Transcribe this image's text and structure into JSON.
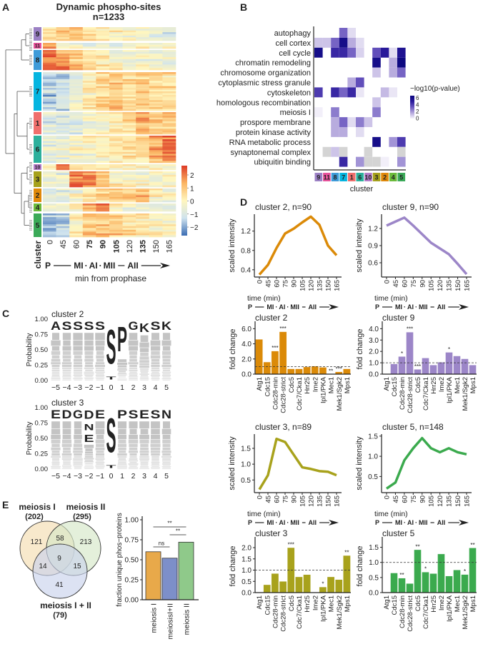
{
  "panel_letters": [
    "A",
    "B",
    "C",
    "D",
    "E"
  ],
  "stage_colors": {
    "P": "#222222",
    "MI": "#F26C6C",
    "AI": "#6CBB3C",
    "MII": "#22B8C8",
    "AII": "#A08BD0"
  },
  "time_points": [
    "0",
    "45",
    "60",
    "75",
    "90",
    "105",
    "120",
    "135",
    "150",
    "165"
  ],
  "time_colors": [
    "#222222",
    "#222222",
    "#222222",
    "#F26C6C",
    "#6CBB3C",
    "#22B8C8",
    "#222222",
    "#A08BD0",
    "#222222",
    "#222222"
  ],
  "stage_arrow": {
    "start": "P",
    "stages": [
      "MI",
      "AI",
      "MII",
      "AII"
    ],
    "separator": "·"
  },
  "cluster_colors": {
    "9": "#9B80C4",
    "11": "#E8529C",
    "8": "#3E9BD9",
    "7": "#05B5E0",
    "1": "#EF6F6C",
    "6": "#2CB09C",
    "10": "#B47CC8",
    "3": "#A6A11C",
    "2": "#E0890A",
    "4": "#6CBB3C",
    "5": "#3BAA58"
  },
  "chart_data": [
    {
      "panel": "A",
      "type": "heatmap",
      "title": "Dynamic phospho-sites",
      "subtitle": "n=1233",
      "row_label": "cluster",
      "xlabel": "min from prophase",
      "colorbar": {
        "ticks": [
          "2",
          "1",
          "0",
          "−1",
          "−2"
        ],
        "tick_values": [
          2,
          1,
          0,
          -1,
          -2
        ],
        "range": [
          -2.6,
          2.6
        ],
        "colors": [
          "#3B6DB3",
          "#CFE3EE",
          "#FFF6BE",
          "#FBB563",
          "#DD3A27"
        ]
      },
      "clusters": [
        {
          "id": "9",
          "profile": [
            0.5,
            0.8,
            1.0,
            0.6,
            0.2,
            0.0,
            0.0,
            -0.3,
            -0.8,
            -1.0
          ]
        },
        {
          "id": "11",
          "profile": [
            2.0,
            0.0,
            -0.2,
            -0.3,
            -0.3,
            -0.3,
            0.0,
            0.0,
            0.0,
            0.2
          ]
        },
        {
          "id": "8",
          "profile": [
            1.8,
            1.5,
            0.8,
            0.2,
            0.0,
            -0.3,
            -0.5,
            -0.5,
            -0.6,
            -0.6
          ]
        },
        {
          "id": "7",
          "profile": [
            -1.5,
            -1.3,
            -0.5,
            0.0,
            0.5,
            0.9,
            0.5,
            0.8,
            0.6,
            0.5
          ]
        },
        {
          "id": "1",
          "profile": [
            -0.8,
            -0.8,
            -0.6,
            -0.3,
            0.1,
            0.4,
            0.7,
            1.3,
            1.0,
            1.0
          ]
        },
        {
          "id": "6",
          "profile": [
            -0.8,
            -0.6,
            -0.3,
            -0.1,
            0.0,
            0.2,
            0.4,
            0.6,
            1.2,
            1.7
          ]
        },
        {
          "id": "10",
          "profile": [
            -0.5,
            1.8,
            0.3,
            0.0,
            -0.2,
            -0.3,
            -0.3,
            -0.2,
            -0.2,
            -0.3
          ]
        },
        {
          "id": "3",
          "profile": [
            -0.5,
            -0.5,
            1.6,
            1.6,
            0.7,
            0.0,
            -0.2,
            -0.3,
            -0.3,
            -0.3
          ]
        },
        {
          "id": "2",
          "profile": [
            -1.0,
            -0.8,
            -0.3,
            0.3,
            0.6,
            0.9,
            1.2,
            1.1,
            0.0,
            -0.3
          ]
        },
        {
          "id": "4",
          "profile": [
            -0.5,
            -0.5,
            0.3,
            1.4,
            1.8,
            0.3,
            -0.2,
            -0.3,
            -0.5,
            -0.5
          ]
        },
        {
          "id": "5",
          "profile": [
            -1.5,
            -1.3,
            0.2,
            1.0,
            1.0,
            0.8,
            0.5,
            0.3,
            0.2,
            0.1
          ]
        }
      ]
    },
    {
      "panel": "B",
      "type": "heatmap",
      "xlabel": "cluster",
      "legend_title": "−log10(p-value)",
      "legend_ticks": [
        "6",
        "4",
        "2",
        "0"
      ],
      "clusters": [
        "9",
        "11",
        "8",
        "7",
        "1",
        "6",
        "10",
        "3",
        "2",
        "4",
        "5"
      ],
      "terms": [
        "autophagy",
        "cell cortex",
        "cell cycle",
        "chromatin remodeling",
        "chromosome organization",
        "cytoplasmic stress granule",
        "cytoskeleton",
        "homologous recombination",
        "meiosis I",
        "prospore membrane",
        "protein kinase activity",
        "RNA metabolic process",
        "synaptonemal complex",
        "ubiquitin binding"
      ],
      "values": [
        [
          null,
          null,
          null,
          3,
          0.5,
          null,
          null,
          null,
          null,
          null,
          null
        ],
        [
          1,
          1,
          3,
          6,
          1.5,
          0.5,
          null,
          null,
          null,
          null,
          null
        ],
        [
          6,
          null,
          4.5,
          4.5,
          3,
          0.7,
          null,
          3.5,
          5,
          0.5,
          5.5
        ],
        [
          null,
          null,
          null,
          null,
          null,
          null,
          null,
          6,
          null,
          1.5,
          7
        ],
        [
          null,
          null,
          null,
          null,
          null,
          null,
          null,
          1,
          null,
          1.5,
          3
        ],
        [
          null,
          null,
          null,
          null,
          1.5,
          3.5,
          null,
          null,
          null,
          null,
          null
        ],
        [
          4,
          null,
          4.5,
          3,
          4.5,
          0.3,
          null,
          null,
          1.2,
          0.3,
          null
        ],
        [
          null,
          null,
          null,
          null,
          null,
          null,
          null,
          1,
          null,
          null,
          null
        ],
        [
          0.1,
          null,
          2.5,
          null,
          null,
          null,
          null,
          2.5,
          null,
          null,
          null
        ],
        [
          null,
          null,
          1.5,
          3,
          0.5,
          2.5,
          1,
          null,
          null,
          null,
          null
        ],
        [
          null,
          null,
          1.5,
          1.5,
          null,
          0.5,
          null,
          null,
          null,
          null,
          null
        ],
        [
          null,
          null,
          null,
          null,
          null,
          null,
          null,
          6,
          null,
          2,
          4
        ],
        [
          null,
          "NA",
          1,
          "NA",
          null,
          null,
          "NA",
          null,
          null,
          null,
          "NA"
        ],
        [
          null,
          null,
          null,
          4.5,
          null,
          2,
          "NA",
          "NA",
          0.1,
          null,
          2
        ]
      ]
    },
    {
      "panel": "C",
      "type": "sequence-logo",
      "ylabel": "Probability",
      "yticks": [
        "0.00",
        "0.25",
        "0.50",
        "0.75",
        "1.00"
      ],
      "positions": [
        "−5",
        "−4",
        "−3",
        "−2",
        "−1",
        "0",
        "1",
        "2",
        "3",
        "4",
        "5"
      ],
      "logos": [
        {
          "title": "cluster 2",
          "top_residues": [
            "A",
            "S",
            "S",
            "S",
            "S",
            "S",
            "P",
            "G",
            "K",
            "S",
            "K"
          ],
          "highlighted": [
            {
              "pos": 0,
              "letter": "S",
              "from": 0.1,
              "to": 1.0,
              "color": "#0B6B36"
            },
            {
              "pos": 0,
              "letter": "T",
              "from": 0.0,
              "to": 0.08,
              "color": "#0B6B36"
            },
            {
              "pos": 1,
              "letter": "P",
              "from": 0.35,
              "to": 1.0,
              "color": "#111111"
            },
            {
              "pos": 3,
              "letter": "K",
              "from": 0.74,
              "to": 0.98,
              "color": "#1F5FA8"
            }
          ]
        },
        {
          "title": "cluster 3",
          "top_residues": [
            "E",
            "D",
            "G",
            "D",
            "E",
            "S",
            "P",
            "S",
            "E",
            "S",
            "N"
          ],
          "highlighted": [
            {
              "pos": -2,
              "letter": "D",
              "from": 0.77,
              "to": 1.0,
              "color": "#D0202E"
            },
            {
              "pos": -2,
              "letter": "N",
              "from": 0.6,
              "to": 0.77,
              "color": "#D0202E"
            },
            {
              "pos": -2,
              "letter": "E",
              "from": 0.4,
              "to": 0.6,
              "color": "#D0202E"
            },
            {
              "pos": 0,
              "letter": "S",
              "from": 0.1,
              "to": 1.0,
              "color": "#0B6B36"
            },
            {
              "pos": 0,
              "letter": "T",
              "from": 0.0,
              "to": 0.08,
              "color": "#0B6B36"
            }
          ]
        }
      ]
    },
    {
      "panel": "D",
      "type": "line",
      "xlabel": "time (min)",
      "ylabel": "scaled intensity",
      "x": [
        0,
        45,
        60,
        75,
        90,
        105,
        120,
        135,
        150,
        165
      ],
      "series": [
        {
          "title": "cluster 2, n=90",
          "cluster": "2",
          "color": "#DB8A08",
          "ylim": [
            0.25,
            1.55
          ],
          "yticks": [
            "0.4",
            "0.8",
            "1.2"
          ],
          "ytick_values": [
            0.4,
            0.8,
            1.2
          ],
          "values": [
            0.3,
            0.5,
            0.85,
            1.15,
            1.25,
            1.38,
            1.5,
            1.33,
            0.9,
            0.7
          ]
        },
        {
          "title": "cluster 9, n=90",
          "cluster": "9",
          "color": "#9C86C8",
          "ylim": [
            0.35,
            1.45
          ],
          "yticks": [
            "0.6",
            "0.9",
            "1.2"
          ],
          "ytick_values": [
            0.6,
            0.9,
            1.2
          ],
          "values": [
            1.25,
            1.32,
            1.39,
            1.25,
            1.1,
            0.95,
            0.85,
            0.75,
            0.58,
            0.4
          ]
        },
        {
          "title": "cluster 3, n=89",
          "cluster": "3",
          "color": "#A8A21C",
          "ylim": [
            0.1,
            1.95
          ],
          "yticks": [
            "0.5",
            "1.0",
            "1.5"
          ],
          "ytick_values": [
            0.5,
            1.0,
            1.5
          ],
          "values": [
            0.2,
            0.65,
            1.8,
            1.7,
            1.3,
            0.9,
            0.85,
            0.78,
            0.76,
            0.65
          ]
        },
        {
          "title": "cluster 5, n=148",
          "cluster": "5",
          "color": "#3BAA4E",
          "ylim": [
            0.1,
            1.55
          ],
          "yticks": [
            "0.5",
            "1.0",
            "1.5"
          ],
          "ytick_values": [
            0.5,
            1.0,
            1.5
          ],
          "values": [
            0.2,
            0.35,
            0.9,
            1.2,
            1.45,
            1.2,
            1.1,
            1.2,
            1.1,
            1.05
          ]
        }
      ]
    },
    {
      "panel": "D",
      "type": "bar",
      "ylabel": "fold change",
      "categories": [
        "Atg1",
        "Cdc15",
        "Cdc28-min",
        "Cdc28-strict",
        "Cdc5",
        "Cdc7/Cka1",
        "Hrr25",
        "Ime2",
        "Ipl1/PKA",
        "Mec1",
        "Mek1/Sgk2",
        "Mps1"
      ],
      "reference_line": 1.0,
      "series": [
        {
          "title": "cluster 2",
          "color": "#DB8A08",
          "ylim": [
            0,
            6.6
          ],
          "yticks": [
            "0.0",
            "2.0",
            "4.0",
            "6.0"
          ],
          "ytick_values": [
            0,
            2,
            4,
            6
          ],
          "values": [
            4.6,
            1.6,
            3.05,
            5.6,
            0.7,
            0.7,
            0.95,
            1.05,
            0.9,
            0,
            0.3,
            0.7
          ],
          "stars": [
            "",
            "",
            "***",
            "***",
            "",
            "",
            "",
            "",
            "",
            "**",
            "***",
            ""
          ]
        },
        {
          "title": "cluster 9",
          "color": "#9C86C8",
          "ylim": [
            0,
            4.4
          ],
          "yticks": [
            "0.0",
            "1.0",
            "2.0",
            "3.0",
            "4.0"
          ],
          "ytick_values": [
            0,
            1,
            2,
            3,
            4
          ],
          "values": [
            0,
            0.9,
            1.55,
            3.7,
            0.42,
            1.42,
            0.8,
            1.05,
            1.92,
            1.6,
            1.35,
            0.8
          ],
          "stars": [
            "",
            "",
            "*",
            "***",
            "***",
            "",
            "",
            "",
            "*",
            "",
            "",
            ""
          ]
        },
        {
          "title": "cluster 3",
          "color": "#A8A21C",
          "ylim": [
            0,
            2.35
          ],
          "yticks": [
            "0.0",
            "0.5",
            "1.0",
            "1.5",
            "2.0"
          ],
          "ytick_values": [
            0,
            0.5,
            1,
            1.5,
            2
          ],
          "values": [
            0,
            0.35,
            0.85,
            0.5,
            2.0,
            0.7,
            0.8,
            0,
            0.25,
            0.7,
            0.58,
            1.65
          ],
          "stars": [
            "",
            "",
            "",
            "",
            "***",
            "",
            "",
            "",
            "*",
            "",
            "",
            "**"
          ]
        },
        {
          "title": "cluster 5",
          "color": "#3BAA4E",
          "ylim": [
            0,
            1.75
          ],
          "yticks": [
            "0.0",
            "0.5",
            "1.0",
            "1.5"
          ],
          "ytick_values": [
            0,
            0.5,
            1,
            1.5
          ],
          "values": [
            0,
            0.65,
            0.48,
            0.3,
            1.42,
            0.68,
            0.63,
            1.28,
            0.55,
            0.75,
            0.6,
            1.48
          ],
          "stars": [
            "",
            "",
            "**",
            "",
            "**",
            "*",
            "",
            "",
            "",
            "",
            "*",
            "**"
          ]
        }
      ]
    },
    {
      "panel": "E",
      "type": "venn",
      "sets": [
        {
          "label": "meiosis I",
          "count": "(202)",
          "color": "#F5DDB0"
        },
        {
          "label": "meiosis II",
          "count": "(295)",
          "color": "#D6E8C8"
        },
        {
          "label": "meiosis I + II",
          "count": "(79)",
          "color": "#C9D3EC"
        }
      ],
      "regions": {
        "I_only": "121",
        "I_II": "58",
        "II_only": "213",
        "all": "9",
        "I_IplusII": "14",
        "II_IplusII": "15",
        "IplusII_only": "41"
      }
    },
    {
      "panel": "E",
      "type": "bar",
      "ylabel": "fraction unique phos−proteins",
      "categories": [
        "meiosis I",
        "meiosisI+II",
        "meiosis II"
      ],
      "values": [
        0.6,
        0.52,
        0.72
      ],
      "colors": [
        "#E8A94A",
        "#7D8FC9",
        "#8FC98A"
      ],
      "ylim": [
        0,
        1
      ],
      "yticks": [
        "0.00",
        "0.25",
        "0.50",
        "0.75",
        "1.00"
      ],
      "significance": [
        {
          "from": 0,
          "to": 2,
          "label": "**"
        },
        {
          "from": 1,
          "to": 2,
          "label": "**"
        },
        {
          "from": 0,
          "to": 1,
          "label": "ns"
        }
      ]
    }
  ]
}
